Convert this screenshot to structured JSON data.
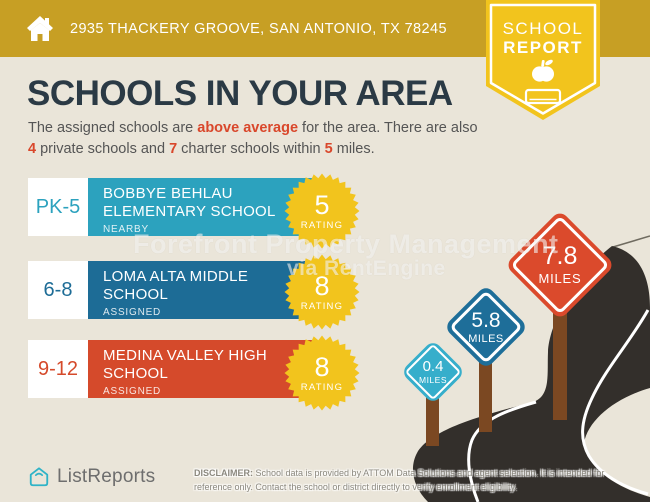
{
  "header": {
    "address": "2935 THACKERY GROOVE, SAN ANTONIO, TX 78245"
  },
  "badge": {
    "line1": "SCHOOL",
    "line2": "REPORT"
  },
  "title": "SCHOOLS IN YOUR AREA",
  "subtitle": {
    "seg1": "The assigned schools are ",
    "seg2": "above average",
    "seg3": " for the area. There are also ",
    "seg4": "4",
    "seg5": " private schools and ",
    "seg6": "7",
    "seg7": " charter schools within ",
    "seg8": "5",
    "seg9": " miles."
  },
  "schools": [
    {
      "grade": "PK-5",
      "name": "BOBBYE BEHLAU ELEMENTARY SCHOOL",
      "tag": "NEARBY",
      "rating": "5",
      "rating_label": "RATING",
      "color": "#2CA2BE"
    },
    {
      "grade": "6-8",
      "name": "LOMA ALTA MIDDLE SCHOOL",
      "tag": "ASSIGNED",
      "rating": "8",
      "rating_label": "RATING",
      "color": "#1D6C96"
    },
    {
      "grade": "9-12",
      "name": "MEDINA VALLEY HIGH SCHOOL",
      "tag": "ASSIGNED",
      "rating": "8",
      "rating_label": "RATING",
      "color": "#D54A2B"
    }
  ],
  "signs": [
    {
      "value": "0.4",
      "unit": "MILES",
      "color": "#36AECB"
    },
    {
      "value": "5.8",
      "unit": "MILES",
      "color": "#1E6E99"
    },
    {
      "value": "7.8",
      "unit": "MILES",
      "color": "#DB4A2C"
    }
  ],
  "watermark": {
    "line1": "Forefront Property Management",
    "line2": "via RentEngine"
  },
  "footer": {
    "brand": "ListReports",
    "disclaimer_label": "DISCLAIMER:",
    "disclaimer_text": " School data is provided by ATTOM Data Solutions and agent selection. It is intended for reference only. Contact the school or district directly to verify enrollment eligibility."
  },
  "icons": {
    "header": "home-icon",
    "badge": [
      "apple-icon",
      "book-icon"
    ],
    "footer": "listreports-house-icon"
  },
  "colors": {
    "background": "#EAE5D9",
    "header_gold": "#C79F24",
    "badge_yellow": "#F2C41D",
    "accent_orange": "#D9472B",
    "title_navy": "#2B3A45",
    "road": "#332F2B",
    "post_brown": "#7B4822",
    "starburst_yellow": "#F2C41D",
    "listreports_teal": "#2FB3C7"
  }
}
